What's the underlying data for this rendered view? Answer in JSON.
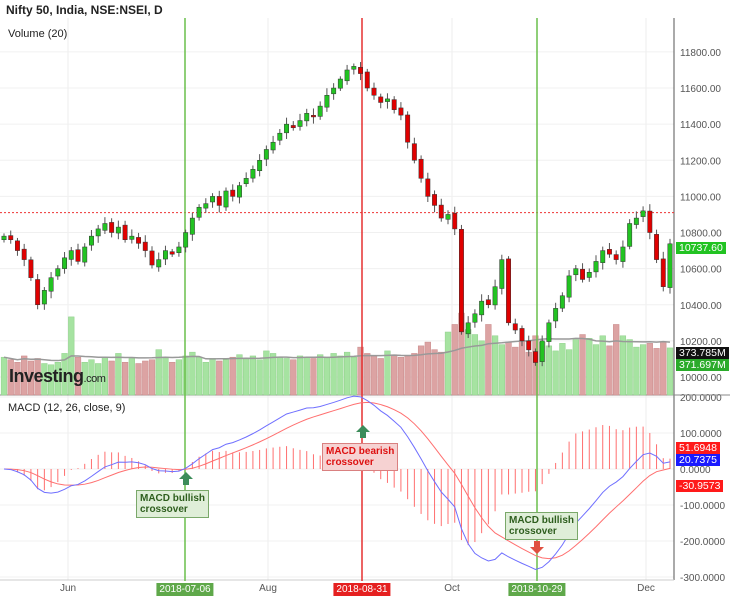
{
  "header": {
    "title": "Nifty 50, India, NSE:NSEI, D",
    "volume_label": "Volume (20)",
    "macd_label": "MACD (12, 26, close, 9)"
  },
  "logo": {
    "text": "Investing",
    "suffix": ".com"
  },
  "colors": {
    "up": "#22c322",
    "down": "#e00000",
    "macd": "#6f6fff",
    "signal": "#ff6f6f",
    "volume_up": "#a6e3a1",
    "volume_down": "#dca3a3",
    "volume_ma": "#999999",
    "signal_vline_bull": "#6abf4b",
    "signal_vline_bear": "#e53030"
  },
  "tags": {
    "last_price": "10737.60",
    "volume": "373.785M",
    "volume_ma": "371.697M",
    "macd_signal": "51.6948",
    "macd_line": "20.7375",
    "histogram": "-30.9573"
  },
  "annotations": [
    {
      "line1": "MACD bullish",
      "line2": "crossover"
    },
    {
      "line1": "MACD bearish",
      "line2": "crossover"
    },
    {
      "line1": "MACD bullish",
      "line2": "crossover"
    }
  ],
  "chart_data": {
    "type": "candlestick",
    "title": "Nifty 50, India, NSE:NSEI, D",
    "price_ticks": [
      "11800.00",
      "11600.00",
      "11400.00",
      "11200.00",
      "11000.00",
      "10800.00",
      "10600.00",
      "10400.00",
      "10200.00",
      "10000.00"
    ],
    "macd_ticks": [
      "200.0000",
      "100.0000",
      "0.0000",
      "-100.0000",
      "-200.0000",
      "-300.0000"
    ],
    "x_ticks": [
      "Jun",
      "2018-07-06",
      "Aug",
      "2018-08-31",
      "Oct",
      "2018-10-29",
      "Dec"
    ],
    "highlighted_dates": [
      {
        "date": "2018-07-06",
        "kind": "bullish"
      },
      {
        "date": "2018-08-31",
        "kind": "bearish"
      },
      {
        "date": "2018-10-29",
        "kind": "bullish"
      }
    ],
    "reference_price": 10910,
    "macd_params": {
      "fast": 12,
      "slow": 26,
      "signal": 9
    },
    "closes": [
      10780,
      10760,
      10700,
      10650,
      10550,
      10400,
      10480,
      10550,
      10600,
      10660,
      10700,
      10640,
      10720,
      10780,
      10820,
      10850,
      10800,
      10830,
      10760,
      10780,
      10740,
      10700,
      10620,
      10650,
      10700,
      10680,
      10720,
      10800,
      10880,
      10940,
      10960,
      11000,
      10950,
      11030,
      11000,
      11060,
      11100,
      11150,
      11200,
      11260,
      11300,
      11350,
      11400,
      11380,
      11420,
      11460,
      11440,
      11500,
      11560,
      11600,
      11650,
      11700,
      11720,
      11680,
      11600,
      11560,
      11520,
      11540,
      11480,
      11450,
      11300,
      11200,
      11100,
      11000,
      10950,
      10880,
      10900,
      10820,
      10250,
      10300,
      10350,
      10420,
      10400,
      10500,
      10650,
      10300,
      10260,
      10200,
      10150,
      10080,
      10200,
      10300,
      10380,
      10450,
      10560,
      10600,
      10540,
      10580,
      10640,
      10700,
      10680,
      10650,
      10720,
      10850,
      10880,
      10920,
      10800,
      10650,
      10500,
      10737.6
    ],
    "volumes_m": [
      300,
      280,
      260,
      310,
      270,
      290,
      250,
      240,
      260,
      330,
      620,
      300,
      260,
      280,
      250,
      300,
      270,
      330,
      260,
      290,
      250,
      270,
      280,
      360,
      300,
      260,
      280,
      310,
      340,
      300,
      260,
      290,
      270,
      280,
      300,
      320,
      290,
      310,
      280,
      350,
      330,
      300,
      290,
      280,
      310,
      300,
      290,
      320,
      300,
      330,
      310,
      340,
      300,
      380,
      330,
      310,
      290,
      350,
      320,
      300,
      310,
      330,
      390,
      420,
      360,
      340,
      500,
      560,
      650,
      520,
      480,
      430,
      560,
      470,
      400,
      420,
      380,
      430,
      340,
      470,
      420,
      390,
      350,
      410,
      360,
      440,
      480,
      450,
      400,
      470,
      390,
      560,
      470,
      440,
      380,
      400,
      410,
      370,
      420,
      373.785
    ]
  }
}
